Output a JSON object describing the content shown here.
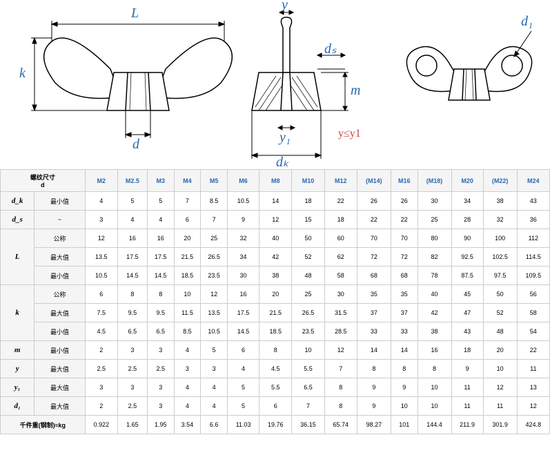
{
  "diagram": {
    "labels": {
      "L": "L",
      "k": "k",
      "d": "d",
      "y": "y",
      "ds": "dₛ",
      "m": "m",
      "y1": "y₁",
      "dk": "dₖ",
      "d1": "d₁",
      "constraint": "y≤y1"
    },
    "colors": {
      "line": "#000000",
      "label": "#2968b0",
      "red": "#d04040",
      "hatch": "#000000"
    }
  },
  "table": {
    "header_label": "螺纹尺寸\nd",
    "sizes": [
      "M2",
      "M2.5",
      "M3",
      "M4",
      "M5",
      "M6",
      "M8",
      "M10",
      "M12",
      "(M14)",
      "M16",
      "(M18)",
      "M20",
      "(M22)",
      "M24"
    ],
    "rows": [
      {
        "param": "d_k",
        "sub": "最小值",
        "vals": [
          "4",
          "5",
          "5",
          "7",
          "8.5",
          "10.5",
          "14",
          "18",
          "22",
          "26",
          "26",
          "30",
          "34",
          "38",
          "43"
        ]
      },
      {
        "param": "d_s",
        "sub": "~",
        "vals": [
          "3",
          "4",
          "4",
          "6",
          "7",
          "9",
          "12",
          "15",
          "18",
          "22",
          "22",
          "25",
          "28",
          "32",
          "36"
        ]
      },
      {
        "param": "L",
        "sub": "公称",
        "vals": [
          "12",
          "16",
          "16",
          "20",
          "25",
          "32",
          "40",
          "50",
          "60",
          "70",
          "70",
          "80",
          "90",
          "100",
          "112"
        ],
        "rowspan": 3
      },
      {
        "param": "",
        "sub": "最大值",
        "vals": [
          "13.5",
          "17.5",
          "17.5",
          "21.5",
          "26.5",
          "34",
          "42",
          "52",
          "62",
          "72",
          "72",
          "82",
          "92.5",
          "102.5",
          "114.5"
        ]
      },
      {
        "param": "",
        "sub": "最小值",
        "vals": [
          "10.5",
          "14.5",
          "14.5",
          "18.5",
          "23.5",
          "30",
          "38",
          "48",
          "58",
          "68",
          "68",
          "78",
          "87.5",
          "97.5",
          "109.5"
        ]
      },
      {
        "param": "k",
        "sub": "公称",
        "vals": [
          "6",
          "8",
          "8",
          "10",
          "12",
          "16",
          "20",
          "25",
          "30",
          "35",
          "35",
          "40",
          "45",
          "50",
          "56"
        ],
        "rowspan": 3
      },
      {
        "param": "",
        "sub": "最大值",
        "vals": [
          "7.5",
          "9.5",
          "9.5",
          "11.5",
          "13.5",
          "17.5",
          "21.5",
          "26.5",
          "31.5",
          "37",
          "37",
          "42",
          "47",
          "52",
          "58"
        ]
      },
      {
        "param": "",
        "sub": "最小值",
        "vals": [
          "4.5",
          "6.5",
          "6.5",
          "8.5",
          "10.5",
          "14.5",
          "18.5",
          "23.5",
          "28.5",
          "33",
          "33",
          "38",
          "43",
          "48",
          "54"
        ]
      },
      {
        "param": "m",
        "sub": "最小值",
        "vals": [
          "2",
          "3",
          "3",
          "4",
          "5",
          "6",
          "8",
          "10",
          "12",
          "14",
          "14",
          "16",
          "18",
          "20",
          "22"
        ]
      },
      {
        "param": "y",
        "sub": "最大值",
        "vals": [
          "2.5",
          "2.5",
          "2.5",
          "3",
          "3",
          "4",
          "4.5",
          "5.5",
          "7",
          "8",
          "8",
          "8",
          "9",
          "10",
          "11"
        ]
      },
      {
        "param": "y₁",
        "sub": "最大值",
        "vals": [
          "3",
          "3",
          "3",
          "4",
          "4",
          "5",
          "5.5",
          "6.5",
          "8",
          "9",
          "9",
          "10",
          "11",
          "12",
          "13"
        ]
      },
      {
        "param": "d₁",
        "sub": "最大值",
        "vals": [
          "2",
          "2.5",
          "3",
          "4",
          "4",
          "5",
          "6",
          "7",
          "8",
          "9",
          "10",
          "10",
          "11",
          "11",
          "12"
        ]
      },
      {
        "param": "千件重(钢制)≈kg",
        "sub": "",
        "vals": [
          "0.922",
          "1.65",
          "1.95",
          "3.54",
          "6.6",
          "11.03",
          "19.76",
          "36.15",
          "65.74",
          "98.27",
          "101",
          "144.4",
          "211.9",
          "301.9",
          "424.8"
        ],
        "colspan": 2
      }
    ],
    "colors": {
      "header_bg": "#f5f5f5",
      "border": "#cccccc",
      "size_text": "#2968b0"
    }
  }
}
